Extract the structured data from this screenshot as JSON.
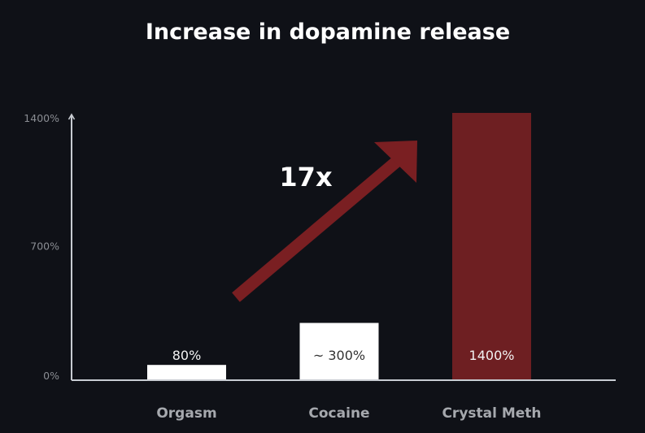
{
  "chart_data": {
    "type": "bar",
    "title": "Increase in dopamine release",
    "categories": [
      "Orgasm",
      "Cocaine",
      "Crystal Meth"
    ],
    "values": [
      80,
      300,
      1400
    ],
    "data_labels": [
      "80%",
      "~ 300%",
      "1400%"
    ],
    "bar_colors": [
      "#ffffff",
      "#ffffff",
      "#6e1f22"
    ],
    "yticks": [
      "0%",
      "700%",
      "1400%"
    ],
    "ytick_values": [
      0,
      700,
      1400
    ],
    "ylim": [
      0,
      1400
    ],
    "grid": false,
    "annotation": {
      "text": "17x",
      "arrow_color": "#7a1f22"
    },
    "colors": {
      "background": "#0f1117",
      "axis": "#c8ccd2",
      "tick_text": "#8a8d93",
      "category_text": "#a6a9ae"
    }
  }
}
